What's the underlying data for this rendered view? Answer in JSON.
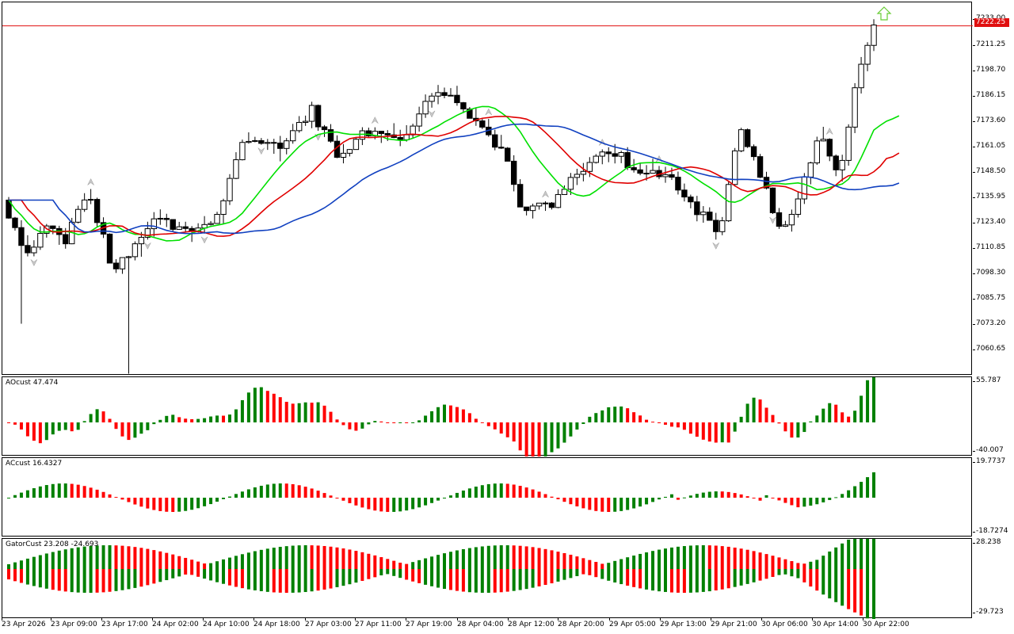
{
  "chart_data": [
    {
      "type": "candlestick",
      "title": "",
      "y_ticks": [
        "7211.25",
        "7198.70",
        "7186.15",
        "7173.60",
        "7161.05",
        "7148.50",
        "7135.95",
        "7123.40",
        "7110.85",
        "7098.30",
        "7085.75",
        "7073.20",
        "7060.65"
      ],
      "ylim": [
        7047.0,
        7234.0
      ],
      "current_price": "7222.25",
      "top_tick": "7233.00",
      "horizontal_line_price": 7222.25,
      "x_labels": [
        "23 Apr 2026",
        "23 Apr 09:00",
        "23 Apr 17:00",
        "24 Apr 02:00",
        "24 Apr 10:00",
        "24 Apr 18:00",
        "27 Apr 03:00",
        "27 Apr 11:00",
        "27 Apr 19:00",
        "28 Apr 04:00",
        "28 Apr 12:00",
        "28 Apr 20:00",
        "29 Apr 05:00",
        "29 Apr 13:00",
        "29 Apr 21:00",
        "30 Apr 06:00",
        "30 Apr 14:00",
        "30 Apr 22:00"
      ],
      "lines": [
        {
          "color": "#00e000",
          "name": "lips"
        },
        {
          "color": "#e00000",
          "name": "teeth"
        },
        {
          "color": "#1040c0",
          "name": "jaw"
        }
      ],
      "signal": "up-arrow",
      "grid": false
    },
    {
      "type": "bar",
      "label": "AOcust 47.474",
      "ymax": "55.787",
      "ymin": "-40.007",
      "range": [
        -40.007,
        55.787
      ]
    },
    {
      "type": "bar",
      "label": "ACcust 16.4327",
      "ymax": "19.7737",
      "ymin": "-18.7274",
      "range": [
        -18.7274,
        19.7737
      ]
    },
    {
      "type": "bar",
      "label": "GatorCust 23.208 -24.693",
      "ymax": "28.238",
      "ymin": "-29.723",
      "range": [
        -29.723,
        28.238
      ]
    }
  ],
  "colors": {
    "up": "#008000",
    "down": "#ff0000",
    "candle_up": "#ffffff",
    "candle_down": "#000000",
    "price_line": "#e01010",
    "signal": "#66cc33"
  }
}
